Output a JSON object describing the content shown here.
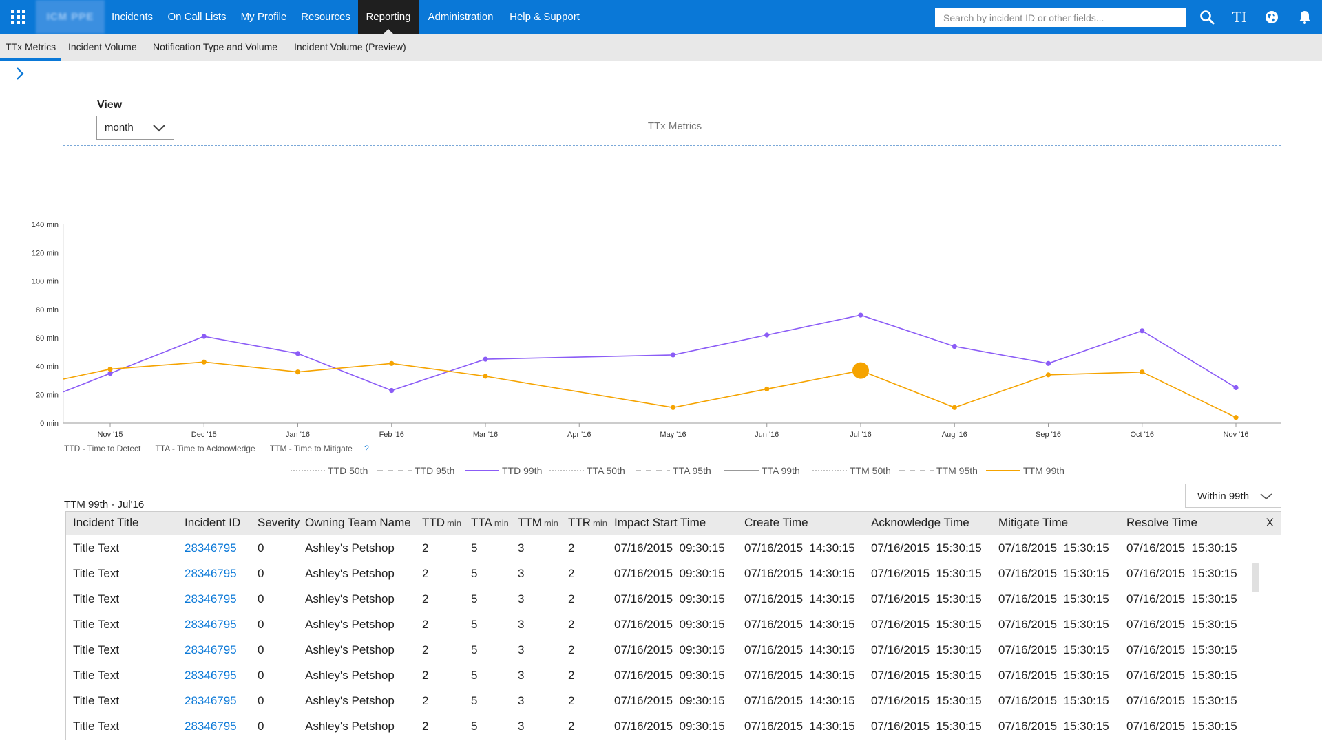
{
  "nav": {
    "brand": "ICM PPE",
    "items": [
      "Incidents",
      "On Call Lists",
      "My Profile",
      "Resources",
      "Reporting",
      "Administration",
      "Help & Support"
    ],
    "active": "Reporting",
    "search_placeholder": "Search by incident ID or other fields...",
    "icons": [
      "waffle-icon",
      "search-icon",
      "text-size-icon",
      "globe-icon",
      "bell-icon"
    ],
    "text_size_glyph": "TI"
  },
  "subnav": {
    "tabs": [
      "TTx Metrics",
      "Incident Volume",
      "Notification Type and Volume",
      "Incident Volume (Preview)"
    ],
    "active": "TTx Metrics"
  },
  "view": {
    "label": "View",
    "selected": "month",
    "chart_title": "TTx Metrics"
  },
  "chart_data": {
    "type": "line",
    "title": "TTx Metrics",
    "categories": [
      "Nov '15",
      "Dec '15",
      "Jan '16",
      "Feb '16",
      "Mar '16",
      "Apr '16",
      "May '16",
      "Jun '16",
      "Jul '16",
      "Aug '16",
      "Sep '16",
      "Oct '16",
      "Nov '16"
    ],
    "y_ticks": [
      "0 min",
      "20 min",
      "40 min",
      "60 min",
      "80 min",
      "100 min",
      "120 min",
      "140 min"
    ],
    "ylim": [
      0,
      140
    ],
    "series": [
      {
        "name": "TTD 99th",
        "color": "#8b5cf6",
        "start_value": 22,
        "values": [
          35,
          61,
          49,
          23,
          45,
          null,
          48,
          62,
          76,
          54,
          42,
          65,
          25
        ]
      },
      {
        "name": "TTM 99th",
        "color": "#f5a300",
        "start_value": 31,
        "values": [
          38,
          43,
          36,
          42,
          33,
          null,
          11,
          24,
          37,
          11,
          34,
          36,
          4
        ],
        "highlighted_index": 8
      }
    ],
    "legend": [
      {
        "name": "TTD 50th",
        "style": "dotted",
        "color": "#999999"
      },
      {
        "name": "TTD 95th",
        "style": "dashed",
        "color": "#999999"
      },
      {
        "name": "TTD 99th",
        "style": "solid",
        "color": "#8b5cf6"
      },
      {
        "name": "TTA 50th",
        "style": "dotted",
        "color": "#999999"
      },
      {
        "name": "TTA 95th",
        "style": "dashed",
        "color": "#999999"
      },
      {
        "name": "TTA 99th",
        "style": "solid",
        "color": "#999999"
      },
      {
        "name": "TTM 50th",
        "style": "dotted",
        "color": "#999999"
      },
      {
        "name": "TTM 95th",
        "style": "dashed",
        "color": "#999999"
      },
      {
        "name": "TTM 99th",
        "style": "solid",
        "color": "#f5a300"
      }
    ],
    "abbreviations": [
      "TTD - Time to Detect",
      "TTA - Time to Acknowledge",
      "TTM - Time to Mitigate"
    ],
    "help_glyph": "?"
  },
  "table": {
    "caption": "TTM 99th - Jul'16",
    "filter": "Within 99th",
    "close_label": "X",
    "headers": [
      {
        "label": "Incident Title",
        "unit": ""
      },
      {
        "label": "Incident ID",
        "unit": ""
      },
      {
        "label": "Severity",
        "unit": ""
      },
      {
        "label": "Owning Team Name",
        "unit": ""
      },
      {
        "label": "TTD",
        "unit": "min"
      },
      {
        "label": "TTA",
        "unit": "min"
      },
      {
        "label": "TTM",
        "unit": "min"
      },
      {
        "label": "TTR",
        "unit": "min"
      },
      {
        "label": "Impact Start Time",
        "unit": ""
      },
      {
        "label": "Create Time",
        "unit": ""
      },
      {
        "label": "Acknowledge Time",
        "unit": ""
      },
      {
        "label": "Mitigate Time",
        "unit": ""
      },
      {
        "label": "Resolve Time",
        "unit": ""
      }
    ],
    "rows": [
      [
        "Title Text",
        "28346795",
        "0",
        "Ashley's Petshop",
        "2",
        "5",
        "3",
        "2",
        "07/16/2015  09:30:15",
        "07/16/2015  14:30:15",
        "07/16/2015  15:30:15",
        "07/16/2015  15:30:15",
        "07/16/2015  15:30:15"
      ],
      [
        "Title Text",
        "28346795",
        "0",
        "Ashley's Petshop",
        "2",
        "5",
        "3",
        "2",
        "07/16/2015  09:30:15",
        "07/16/2015  14:30:15",
        "07/16/2015  15:30:15",
        "07/16/2015  15:30:15",
        "07/16/2015  15:30:15"
      ],
      [
        "Title Text",
        "28346795",
        "0",
        "Ashley's Petshop",
        "2",
        "5",
        "3",
        "2",
        "07/16/2015  09:30:15",
        "07/16/2015  14:30:15",
        "07/16/2015  15:30:15",
        "07/16/2015  15:30:15",
        "07/16/2015  15:30:15"
      ],
      [
        "Title Text",
        "28346795",
        "0",
        "Ashley's Petshop",
        "2",
        "5",
        "3",
        "2",
        "07/16/2015  09:30:15",
        "07/16/2015  14:30:15",
        "07/16/2015  15:30:15",
        "07/16/2015  15:30:15",
        "07/16/2015  15:30:15"
      ],
      [
        "Title Text",
        "28346795",
        "0",
        "Ashley's Petshop",
        "2",
        "5",
        "3",
        "2",
        "07/16/2015  09:30:15",
        "07/16/2015  14:30:15",
        "07/16/2015  15:30:15",
        "07/16/2015  15:30:15",
        "07/16/2015  15:30:15"
      ],
      [
        "Title Text",
        "28346795",
        "0",
        "Ashley's Petshop",
        "2",
        "5",
        "3",
        "2",
        "07/16/2015  09:30:15",
        "07/16/2015  14:30:15",
        "07/16/2015  15:30:15",
        "07/16/2015  15:30:15",
        "07/16/2015  15:30:15"
      ],
      [
        "Title Text",
        "28346795",
        "0",
        "Ashley's Petshop",
        "2",
        "5",
        "3",
        "2",
        "07/16/2015  09:30:15",
        "07/16/2015  14:30:15",
        "07/16/2015  15:30:15",
        "07/16/2015  15:30:15",
        "07/16/2015  15:30:15"
      ],
      [
        "Title Text",
        "28346795",
        "0",
        "Ashley's Petshop",
        "2",
        "5",
        "3",
        "2",
        "07/16/2015  09:30:15",
        "07/16/2015  14:30:15",
        "07/16/2015  15:30:15",
        "07/16/2015  15:30:15",
        "07/16/2015  15:30:15"
      ]
    ]
  },
  "colors": {
    "accent": "#0a78d7",
    "nav_active": "#1f1f1f",
    "subnav_bg": "#e8e8e8"
  }
}
